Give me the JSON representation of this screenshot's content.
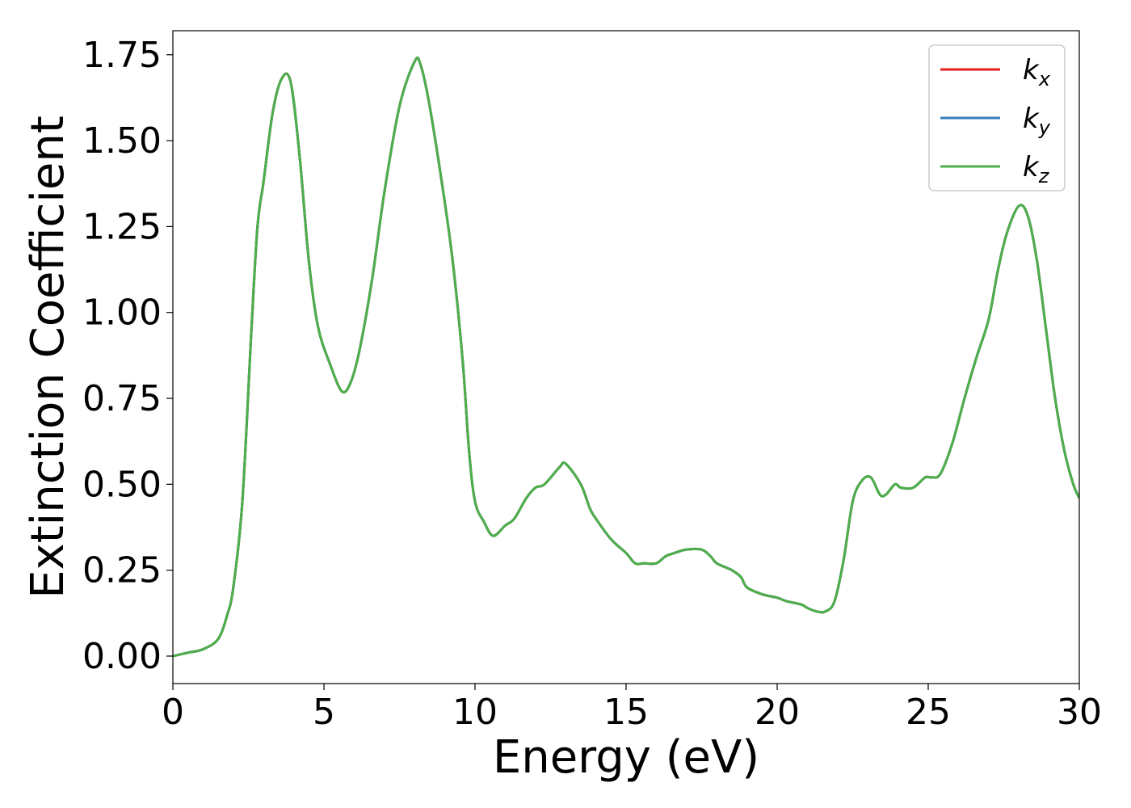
{
  "chart_data": {
    "type": "line",
    "xlabel": "Energy (eV)",
    "ylabel": "Extinction Coefficient",
    "xlim": [
      0,
      30
    ],
    "ylim": [
      -0.08,
      1.82
    ],
    "xticks": [
      0,
      5,
      10,
      15,
      20,
      25,
      30
    ],
    "xtick_labels": [
      "0",
      "5",
      "10",
      "15",
      "20",
      "25",
      "30"
    ],
    "yticks": [
      0.0,
      0.25,
      0.5,
      0.75,
      1.0,
      1.25,
      1.5,
      1.75
    ],
    "ytick_labels": [
      "0.00",
      "0.25",
      "0.50",
      "0.75",
      "1.00",
      "1.25",
      "1.50",
      "1.75"
    ],
    "grid": false,
    "legend_position": "top-right",
    "x": [
      0,
      0.5,
      1.0,
      1.5,
      1.8,
      2.0,
      2.3,
      2.6,
      2.8,
      3.0,
      3.3,
      3.6,
      3.9,
      4.2,
      4.5,
      4.8,
      5.2,
      5.6,
      5.9,
      6.2,
      6.6,
      7.0,
      7.5,
      8.0,
      8.2,
      8.5,
      9.0,
      9.3,
      9.6,
      9.8,
      10.0,
      10.3,
      10.6,
      11.0,
      11.3,
      11.7,
      12.0,
      12.3,
      12.8,
      13.0,
      13.5,
      13.8,
      14.0,
      14.5,
      15.0,
      15.3,
      15.6,
      16.0,
      16.3,
      16.6,
      17.0,
      17.5,
      17.8,
      18.0,
      18.5,
      18.8,
      19.0,
      19.5,
      20.0,
      20.3,
      20.8,
      21.0,
      21.3,
      21.6,
      21.9,
      22.2,
      22.5,
      22.8,
      23.1,
      23.4,
      23.6,
      23.9,
      24.1,
      24.5,
      24.9,
      25.1,
      25.4,
      25.8,
      26.2,
      26.6,
      27.0,
      27.3,
      27.6,
      28.0,
      28.3,
      28.6,
      28.9,
      29.2,
      29.5,
      29.8,
      30.0
    ],
    "series": [
      {
        "name": "k",
        "sub": "x",
        "color": "#e41a1c",
        "values": [
          0.0,
          0.01,
          0.02,
          0.05,
          0.12,
          0.2,
          0.45,
          0.95,
          1.25,
          1.38,
          1.58,
          1.68,
          1.67,
          1.45,
          1.15,
          0.96,
          0.85,
          0.77,
          0.8,
          0.9,
          1.1,
          1.35,
          1.6,
          1.73,
          1.72,
          1.6,
          1.32,
          1.12,
          0.85,
          0.6,
          0.45,
          0.39,
          0.35,
          0.38,
          0.4,
          0.46,
          0.49,
          0.5,
          0.55,
          0.56,
          0.5,
          0.43,
          0.4,
          0.34,
          0.3,
          0.27,
          0.27,
          0.27,
          0.29,
          0.3,
          0.31,
          0.31,
          0.29,
          0.27,
          0.25,
          0.23,
          0.2,
          0.18,
          0.17,
          0.16,
          0.15,
          0.14,
          0.13,
          0.13,
          0.16,
          0.28,
          0.45,
          0.51,
          0.52,
          0.47,
          0.47,
          0.5,
          0.49,
          0.49,
          0.52,
          0.52,
          0.53,
          0.62,
          0.75,
          0.87,
          0.98,
          1.12,
          1.23,
          1.31,
          1.28,
          1.15,
          0.95,
          0.75,
          0.6,
          0.5,
          0.46
        ]
      },
      {
        "name": "k",
        "sub": "y",
        "color": "#377eb8",
        "values": [
          0.0,
          0.01,
          0.02,
          0.05,
          0.12,
          0.2,
          0.45,
          0.95,
          1.25,
          1.38,
          1.58,
          1.68,
          1.67,
          1.45,
          1.15,
          0.96,
          0.85,
          0.77,
          0.8,
          0.9,
          1.1,
          1.35,
          1.6,
          1.73,
          1.72,
          1.6,
          1.32,
          1.12,
          0.85,
          0.6,
          0.45,
          0.39,
          0.35,
          0.38,
          0.4,
          0.46,
          0.49,
          0.5,
          0.55,
          0.56,
          0.5,
          0.43,
          0.4,
          0.34,
          0.3,
          0.27,
          0.27,
          0.27,
          0.29,
          0.3,
          0.31,
          0.31,
          0.29,
          0.27,
          0.25,
          0.23,
          0.2,
          0.18,
          0.17,
          0.16,
          0.15,
          0.14,
          0.13,
          0.13,
          0.16,
          0.28,
          0.45,
          0.51,
          0.52,
          0.47,
          0.47,
          0.5,
          0.49,
          0.49,
          0.52,
          0.52,
          0.53,
          0.62,
          0.75,
          0.87,
          0.98,
          1.12,
          1.23,
          1.31,
          1.28,
          1.15,
          0.95,
          0.75,
          0.6,
          0.5,
          0.46
        ]
      },
      {
        "name": "k",
        "sub": "z",
        "color": "#4daf4a",
        "values": [
          0.0,
          0.01,
          0.02,
          0.05,
          0.12,
          0.2,
          0.45,
          0.95,
          1.25,
          1.38,
          1.58,
          1.68,
          1.67,
          1.45,
          1.15,
          0.96,
          0.85,
          0.77,
          0.8,
          0.9,
          1.1,
          1.35,
          1.6,
          1.73,
          1.72,
          1.6,
          1.32,
          1.12,
          0.85,
          0.6,
          0.45,
          0.39,
          0.35,
          0.38,
          0.4,
          0.46,
          0.49,
          0.5,
          0.55,
          0.56,
          0.5,
          0.43,
          0.4,
          0.34,
          0.3,
          0.27,
          0.27,
          0.27,
          0.29,
          0.3,
          0.31,
          0.31,
          0.29,
          0.27,
          0.25,
          0.23,
          0.2,
          0.18,
          0.17,
          0.16,
          0.15,
          0.14,
          0.13,
          0.13,
          0.16,
          0.28,
          0.45,
          0.51,
          0.52,
          0.47,
          0.47,
          0.5,
          0.49,
          0.49,
          0.52,
          0.52,
          0.53,
          0.62,
          0.75,
          0.87,
          0.98,
          1.12,
          1.23,
          1.31,
          1.28,
          1.15,
          0.95,
          0.75,
          0.6,
          0.5,
          0.46
        ]
      }
    ]
  }
}
